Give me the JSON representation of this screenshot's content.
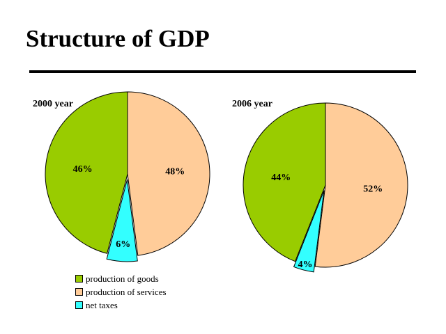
{
  "page": {
    "title": "Structure of GDP"
  },
  "chart_data": [
    {
      "type": "pie",
      "title": "2000 year",
      "categories": [
        "production of goods",
        "production of services",
        "net taxes"
      ],
      "values": [
        46,
        48,
        6
      ],
      "labels": [
        "46%",
        "48%",
        "6%"
      ],
      "colors": [
        "#99cc00",
        "#ffcc99",
        "#33ffff"
      ]
    },
    {
      "type": "pie",
      "title": "2006 year",
      "categories": [
        "production of goods",
        "production of services",
        "net taxes"
      ],
      "values": [
        44,
        52,
        4
      ],
      "labels": [
        "44%",
        "52%",
        "4%"
      ],
      "colors": [
        "#99cc00",
        "#ffcc99",
        "#33ffff"
      ]
    }
  ],
  "legend": {
    "placement": "bottom-left",
    "items": [
      {
        "label": "production of goods",
        "color": "#99cc00"
      },
      {
        "label": "production of services",
        "color": "#ffcc99"
      },
      {
        "label": "net taxes",
        "color": "#33ffff"
      }
    ]
  }
}
